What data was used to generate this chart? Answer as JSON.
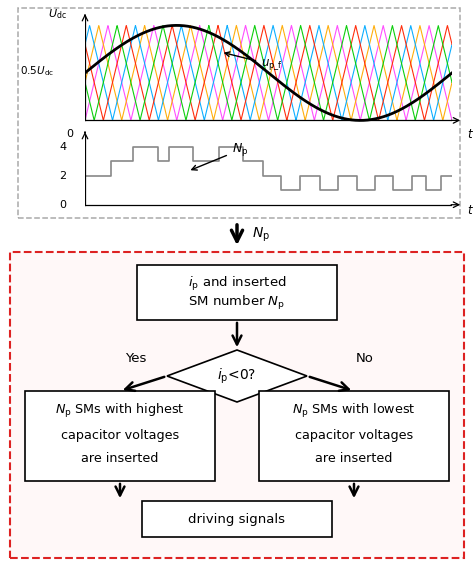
{
  "fig_width": 4.74,
  "fig_height": 5.64,
  "dpi": 100,
  "tri_colors": [
    "#ff44ff",
    "#ffaa00",
    "#00aaff",
    "#ff2200",
    "#00cc00"
  ],
  "sine_color": "#000000",
  "stair_color": "#888888",
  "top_border": "#aaaaaa",
  "bot_border": "#dd2222",
  "bot_bg": "#fff8f8",
  "n_carriers": 5,
  "carrier_freq": 8,
  "stair_t": [
    0,
    0.04,
    0.07,
    0.1,
    0.13,
    0.17,
    0.2,
    0.23,
    0.265,
    0.295,
    0.33,
    0.365,
    0.4,
    0.43,
    0.455,
    0.485,
    0.51,
    0.535,
    0.56,
    0.585,
    0.615,
    0.64,
    0.665,
    0.69,
    0.715,
    0.74,
    0.765,
    0.79,
    0.815,
    0.84,
    0.865,
    0.89,
    0.91,
    0.93,
    0.95,
    0.97,
    1.0
  ],
  "stair_v": [
    2,
    2,
    3,
    3,
    4,
    4,
    3,
    4,
    4,
    3,
    3,
    4,
    4,
    3,
    3,
    2,
    2,
    1,
    1,
    2,
    2,
    1,
    1,
    2,
    2,
    1,
    1,
    2,
    2,
    1,
    1,
    2,
    2,
    1,
    1,
    2,
    2
  ]
}
